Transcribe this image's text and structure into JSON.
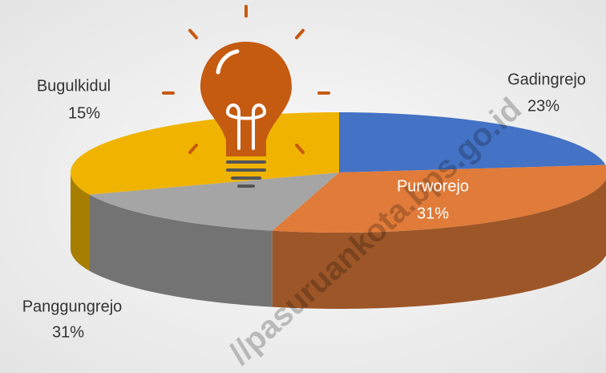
{
  "chart_data": {
    "type": "pie3d",
    "categories": [
      "Gadingrejo",
      "Purworejo",
      "Bugulkidul",
      "Panggungrejo"
    ],
    "values": [
      23,
      31,
      15,
      31
    ],
    "value_labels": [
      "23%",
      "31%",
      "15%",
      "31%"
    ],
    "colors": [
      "#4472c4",
      "#e07b39",
      "#a5a5a5",
      "#f0b400"
    ],
    "watermark": "//pasuruankota.bps.go.id"
  }
}
